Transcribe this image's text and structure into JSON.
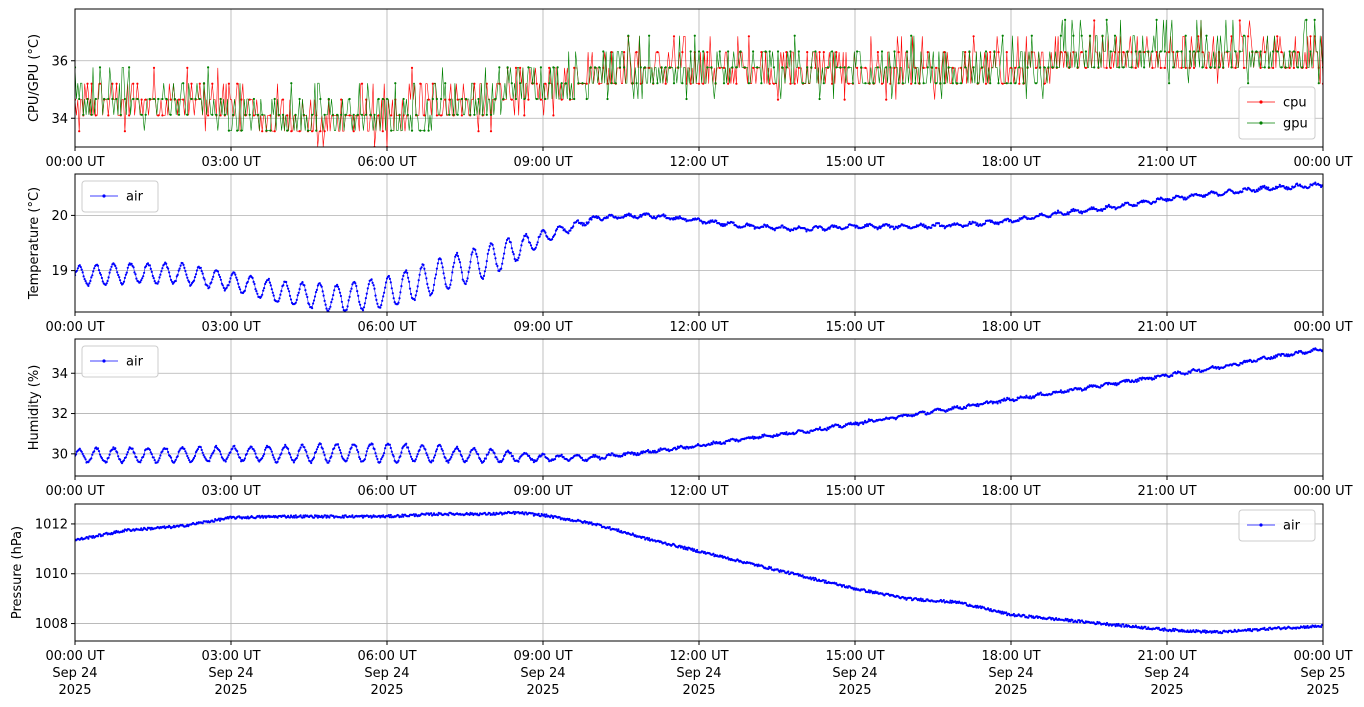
{
  "colors": {
    "cpu": "#ff0000",
    "gpu": "#008000",
    "air": "#0000ff",
    "grid": "#b0b0b0",
    "axis": "#000000"
  },
  "chart_data": [
    {
      "type": "line",
      "ylabel": "CPU/GPU (°C)",
      "xlim": [
        0,
        24
      ],
      "ylim": [
        33.0,
        37.8
      ],
      "yticks": [
        34,
        36
      ],
      "grid": true,
      "legend": "bottom-right",
      "series": [
        {
          "name": "cpu",
          "color": "#ff0000",
          "style": "step-noise",
          "x": [
            0,
            0.5,
            1,
            2,
            3,
            4,
            5,
            6,
            7,
            8,
            8.4,
            9,
            10,
            12,
            15,
            18,
            18.6,
            19,
            21,
            23,
            24
          ],
          "values": [
            34.8,
            34.7,
            34.8,
            34.8,
            34.5,
            34.2,
            34.3,
            34.3,
            34.5,
            34.9,
            35.0,
            35.3,
            35.6,
            35.6,
            35.7,
            35.9,
            35.9,
            36.2,
            36.3,
            36.4,
            36.4
          ]
        },
        {
          "name": "gpu",
          "color": "#008000",
          "style": "step-noise",
          "x": [
            0,
            0.5,
            1,
            2,
            3,
            4,
            5,
            6,
            7,
            8,
            8.4,
            9,
            10,
            12,
            15,
            18,
            18.6,
            19,
            21,
            23,
            24
          ],
          "values": [
            34.5,
            34.4,
            34.5,
            34.5,
            34.3,
            34.2,
            34.2,
            34.2,
            34.4,
            34.8,
            35.0,
            35.3,
            35.5,
            35.6,
            35.6,
            35.8,
            35.9,
            36.1,
            36.3,
            36.4,
            36.4
          ]
        }
      ]
    },
    {
      "type": "line",
      "ylabel": "Temperature (°C)",
      "xlim": [
        0,
        24
      ],
      "ylim": [
        18.25,
        20.75
      ],
      "yticks": [
        19,
        20
      ],
      "grid": true,
      "legend": "top-left",
      "series": [
        {
          "name": "air",
          "color": "#0000ff",
          "style": "oscillating",
          "x": [
            0,
            1,
            2,
            3,
            4,
            5,
            6,
            7,
            8,
            9,
            10,
            11,
            12,
            13,
            14,
            15,
            16,
            17,
            18,
            19,
            20,
            21,
            22,
            23,
            24
          ],
          "values": [
            18.9,
            18.95,
            18.95,
            18.8,
            18.6,
            18.5,
            18.6,
            18.9,
            19.2,
            19.6,
            19.95,
            20.0,
            19.9,
            19.8,
            19.75,
            19.8,
            19.8,
            19.82,
            19.9,
            20.05,
            20.15,
            20.3,
            20.4,
            20.5,
            20.55
          ],
          "amplitude": [
            0.18,
            0.18,
            0.18,
            0.16,
            0.2,
            0.24,
            0.28,
            0.3,
            0.3,
            0.12,
            0.03,
            0.03,
            0.03,
            0.03,
            0.03,
            0.03,
            0.03,
            0.03,
            0.03,
            0.03,
            0.03,
            0.03,
            0.03,
            0.03,
            0.03
          ]
        }
      ]
    },
    {
      "type": "line",
      "ylabel": "Humidity (%)",
      "xlim": [
        0,
        24
      ],
      "ylim": [
        28.9,
        35.7
      ],
      "yticks": [
        30,
        32,
        34
      ],
      "grid": true,
      "legend": "top-left",
      "series": [
        {
          "name": "air",
          "color": "#0000ff",
          "style": "oscillating",
          "x": [
            0,
            1,
            2,
            3,
            4,
            5,
            6,
            7,
            8,
            9,
            10,
            11,
            12,
            13,
            14,
            15,
            16,
            17,
            18,
            19,
            20,
            21,
            22,
            23,
            24
          ],
          "values": [
            29.9,
            29.95,
            29.95,
            30.0,
            30.0,
            30.05,
            30.05,
            30.0,
            29.9,
            29.8,
            29.8,
            30.1,
            30.4,
            30.8,
            31.1,
            31.5,
            31.9,
            32.3,
            32.7,
            33.1,
            33.5,
            33.9,
            34.3,
            34.8,
            35.2
          ],
          "amplitude": [
            0.35,
            0.35,
            0.35,
            0.35,
            0.4,
            0.45,
            0.45,
            0.4,
            0.3,
            0.15,
            0.1,
            0.05,
            0.05,
            0.05,
            0.05,
            0.05,
            0.05,
            0.05,
            0.05,
            0.05,
            0.05,
            0.05,
            0.05,
            0.05,
            0.05
          ]
        }
      ]
    },
    {
      "type": "line",
      "ylabel": "Pressure (hPa)",
      "xlim": [
        0,
        24
      ],
      "ylim": [
        1007.3,
        1012.8
      ],
      "yticks": [
        1008,
        1010,
        1012
      ],
      "grid": true,
      "legend": "top-right",
      "series": [
        {
          "name": "air",
          "color": "#0000ff",
          "style": "smooth",
          "x": [
            0,
            1,
            2,
            3,
            4,
            5,
            6,
            7,
            8,
            8.5,
            9,
            10,
            11,
            12,
            13,
            14,
            15,
            16,
            17,
            18,
            19,
            20,
            21,
            22,
            23,
            24
          ],
          "values": [
            1011.35,
            1011.75,
            1011.9,
            1012.25,
            1012.3,
            1012.3,
            1012.3,
            1012.4,
            1012.4,
            1012.45,
            1012.35,
            1012.0,
            1011.4,
            1010.9,
            1010.4,
            1009.9,
            1009.4,
            1009.0,
            1008.85,
            1008.35,
            1008.15,
            1007.95,
            1007.75,
            1007.65,
            1007.8,
            1007.9
          ],
          "amplitude": [
            0.05,
            0.05,
            0.05,
            0.05,
            0.05,
            0.05,
            0.05,
            0.05,
            0.05,
            0.05,
            0.05,
            0.05,
            0.05,
            0.05,
            0.05,
            0.05,
            0.05,
            0.05,
            0.05,
            0.05,
            0.05,
            0.05,
            0.05,
            0.05,
            0.05,
            0.05
          ]
        }
      ]
    }
  ],
  "x_axis": {
    "tick_hours": [
      0,
      3,
      6,
      9,
      12,
      15,
      18,
      21,
      24
    ],
    "tick_labels": [
      "00:00 UT",
      "03:00 UT",
      "06:00 UT",
      "09:00 UT",
      "12:00 UT",
      "15:00 UT",
      "18:00 UT",
      "21:00 UT",
      "00:00 UT"
    ],
    "bottom_date_lines": [
      [
        "Sep 24",
        "2025"
      ],
      [
        "Sep 24",
        "2025"
      ],
      [
        "Sep 24",
        "2025"
      ],
      [
        "Sep 24",
        "2025"
      ],
      [
        "Sep 24",
        "2025"
      ],
      [
        "Sep 24",
        "2025"
      ],
      [
        "Sep 24",
        "2025"
      ],
      [
        "Sep 24",
        "2025"
      ],
      [
        "Sep 25",
        "2025"
      ]
    ]
  }
}
